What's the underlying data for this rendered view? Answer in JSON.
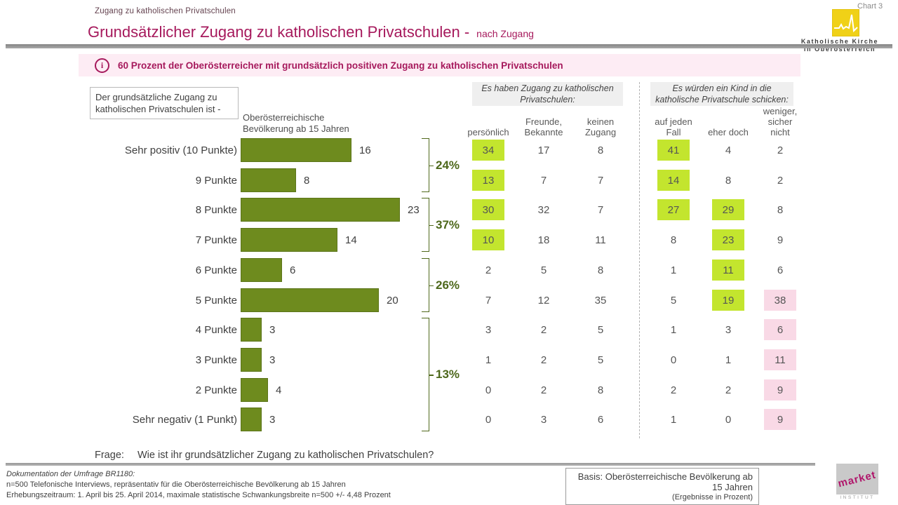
{
  "header": {
    "breadcrumb": "Zugang zu katholischen Privatschulen",
    "title": "Grundsätzlicher Zugang zu katholischen Privatschulen -",
    "title_suffix": "nach Zugang",
    "chart_label": "Chart 3",
    "org_logo_text": "Katholische Kirche\nin Oberösterreich"
  },
  "banner": {
    "icon": "info-icon",
    "text": "60 Prozent der Oberösterreicher mit grundsätzlich positiven Zugang zu katholischen Privatschulen"
  },
  "intro_box": {
    "text": "Der grundsätzliche Zugang zu\nkatholischen Privatschulen ist -"
  },
  "colors": {
    "accent_magenta": "#a6195c",
    "bar_green": "#6e8b1e",
    "highlight_green": "#c3e52e",
    "highlight_pink": "#f9d9e6",
    "banner_bg": "#fdecf4",
    "logo_yellow": "#f0d117"
  },
  "chart_data": {
    "type": "bar",
    "orientation": "horizontal",
    "title": "Grundsätzlicher Zugang zu katholischen Privatschulen - nach Zugang",
    "series_header": "Oberösterreichische\nBevölkerung ab 15 Jahren",
    "categories": [
      "Sehr positiv (10 Punkte)",
      "9 Punkte",
      "8 Punkte",
      "7 Punkte",
      "6 Punkte",
      "5 Punkte",
      "4 Punkte",
      "3 Punkte",
      "2 Punkte",
      "Sehr negativ (1 Punkt)"
    ],
    "values": [
      16,
      8,
      23,
      14,
      6,
      20,
      3,
      3,
      4,
      3
    ],
    "unit": "Prozent",
    "xlim": [
      0,
      25
    ],
    "grid": false,
    "group_brackets": [
      {
        "from_row": 0,
        "to_row": 1,
        "label": "24%"
      },
      {
        "from_row": 2,
        "to_row": 3,
        "label": "37%"
      },
      {
        "from_row": 4,
        "to_row": 5,
        "label": "26%"
      },
      {
        "from_row": 6,
        "to_row": 9,
        "label": "13%"
      }
    ],
    "table_groups": [
      {
        "header": "Es haben Zugang zu katholischen\nPrivatschulen:",
        "columns": [
          "persönlich",
          "Freunde,\nBekannte",
          "keinen\nZugang"
        ]
      },
      {
        "header": "Es würden ein Kind in die\nkatholische Privatschule schicken:",
        "columns": [
          "auf jeden\nFall",
          "eher doch",
          "weniger,\nsicher\nnicht"
        ]
      }
    ],
    "table_rows": [
      {
        "values": [
          34,
          17,
          8,
          41,
          4,
          2
        ],
        "highlights": [
          "green",
          null,
          null,
          "green",
          null,
          null
        ]
      },
      {
        "values": [
          13,
          7,
          7,
          14,
          8,
          2
        ],
        "highlights": [
          "green",
          null,
          null,
          "green",
          null,
          null
        ]
      },
      {
        "values": [
          30,
          32,
          7,
          27,
          29,
          8
        ],
        "highlights": [
          "green",
          null,
          null,
          "green",
          "green",
          null
        ]
      },
      {
        "values": [
          10,
          18,
          11,
          8,
          23,
          9
        ],
        "highlights": [
          "green",
          null,
          null,
          null,
          "green",
          null
        ]
      },
      {
        "values": [
          2,
          5,
          8,
          1,
          11,
          6
        ],
        "highlights": [
          null,
          null,
          null,
          null,
          "green",
          null
        ]
      },
      {
        "values": [
          7,
          12,
          35,
          5,
          19,
          38
        ],
        "highlights": [
          null,
          null,
          null,
          null,
          "green",
          "pink"
        ]
      },
      {
        "values": [
          3,
          2,
          5,
          1,
          3,
          6
        ],
        "highlights": [
          null,
          null,
          null,
          null,
          null,
          "pink"
        ]
      },
      {
        "values": [
          1,
          2,
          5,
          0,
          1,
          11
        ],
        "highlights": [
          null,
          null,
          null,
          null,
          null,
          "pink"
        ]
      },
      {
        "values": [
          0,
          2,
          8,
          2,
          2,
          9
        ],
        "highlights": [
          null,
          null,
          null,
          null,
          null,
          "pink"
        ]
      },
      {
        "values": [
          0,
          3,
          6,
          1,
          0,
          9
        ],
        "highlights": [
          null,
          null,
          null,
          null,
          null,
          "pink"
        ]
      }
    ]
  },
  "question": {
    "label": "Frage:",
    "text": "Wie ist ihr grundsätzlicher Zugang zu katholischen Privatschulen?"
  },
  "footer": {
    "doc_line1": "Dokumentation der Umfrage BR1180:",
    "doc_line2": "n=500 Telefonische Interviews, repräsentativ für die Oberösterreichische Bevölkerung ab 15 Jahren",
    "doc_line3": "Erhebungszeitraum: 1. April bis 25. April 2014, maximale statistische Schwankungsbreite n=500 +/- 4,48 Prozent",
    "basis_line1": "Basis: Oberösterreichische Bevölkerung ab 15 Jahren",
    "basis_line2": "(Ergebnisse in Prozent)",
    "market_logo": "market",
    "market_logo_sub": "INSTITUT"
  }
}
